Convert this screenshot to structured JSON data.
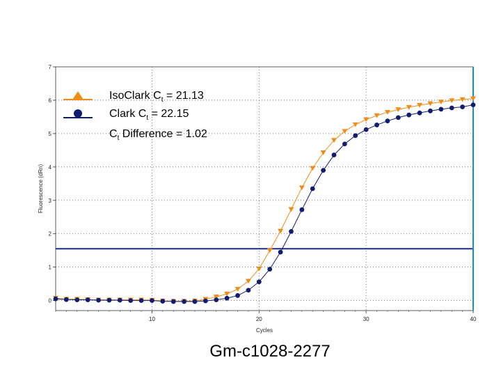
{
  "chart_data": {
    "type": "line",
    "title": "",
    "caption": "Gm-c1028-2277",
    "xlabel": "Cycles",
    "ylabel": "Fluorescence (dRn)",
    "xlim": [
      1,
      40
    ],
    "ylim": [
      -0.3,
      7
    ],
    "x_ticks": [
      10,
      20,
      30,
      40
    ],
    "y_ticks": [
      0,
      1,
      2,
      3,
      4,
      5,
      6,
      7
    ],
    "grid": true,
    "legend_position": "top-left",
    "threshold": 1.55,
    "threshold_color": "#1c2a8c",
    "cursor_x": 40,
    "cursor_color": "#1b8fd0",
    "x": [
      1,
      2,
      3,
      4,
      5,
      6,
      7,
      8,
      9,
      10,
      11,
      12,
      13,
      14,
      15,
      16,
      17,
      18,
      19,
      20,
      21,
      22,
      23,
      24,
      25,
      26,
      27,
      28,
      29,
      30,
      31,
      32,
      33,
      34,
      35,
      36,
      37,
      38,
      39,
      40
    ],
    "series": [
      {
        "legend_label": "IsoClark C",
        "legend_sub": "t",
        "legend_value": " = 21.13",
        "color": "#f08c1a",
        "marker": "triangle",
        "values": [
          0.07,
          0.04,
          0.04,
          0.03,
          0.02,
          0.02,
          0.02,
          0.02,
          0.02,
          0.01,
          -0.01,
          -0.02,
          -0.02,
          -0.01,
          0.04,
          0.11,
          0.2,
          0.34,
          0.58,
          0.95,
          1.5,
          2.08,
          2.73,
          3.38,
          3.96,
          4.43,
          4.8,
          5.07,
          5.27,
          5.42,
          5.54,
          5.64,
          5.72,
          5.79,
          5.85,
          5.9,
          5.95,
          5.99,
          6.02,
          6.05
        ]
      },
      {
        "legend_label": "Clark C",
        "legend_sub": "t",
        "legend_value": " = 22.15",
        "color": "#121c6e",
        "marker": "circle",
        "values": [
          0.05,
          0.03,
          0.02,
          0.02,
          0.01,
          0.01,
          0.01,
          0.0,
          0.0,
          0.0,
          -0.02,
          -0.03,
          -0.03,
          -0.03,
          -0.01,
          0.02,
          0.07,
          0.15,
          0.31,
          0.56,
          0.94,
          1.45,
          2.07,
          2.72,
          3.35,
          3.9,
          4.36,
          4.69,
          4.94,
          5.12,
          5.26,
          5.38,
          5.48,
          5.56,
          5.62,
          5.68,
          5.73,
          5.77,
          5.8,
          5.86
        ]
      }
    ],
    "difference_label": "C",
    "difference_sub": "t",
    "difference_value": " Difference = 1.02"
  }
}
